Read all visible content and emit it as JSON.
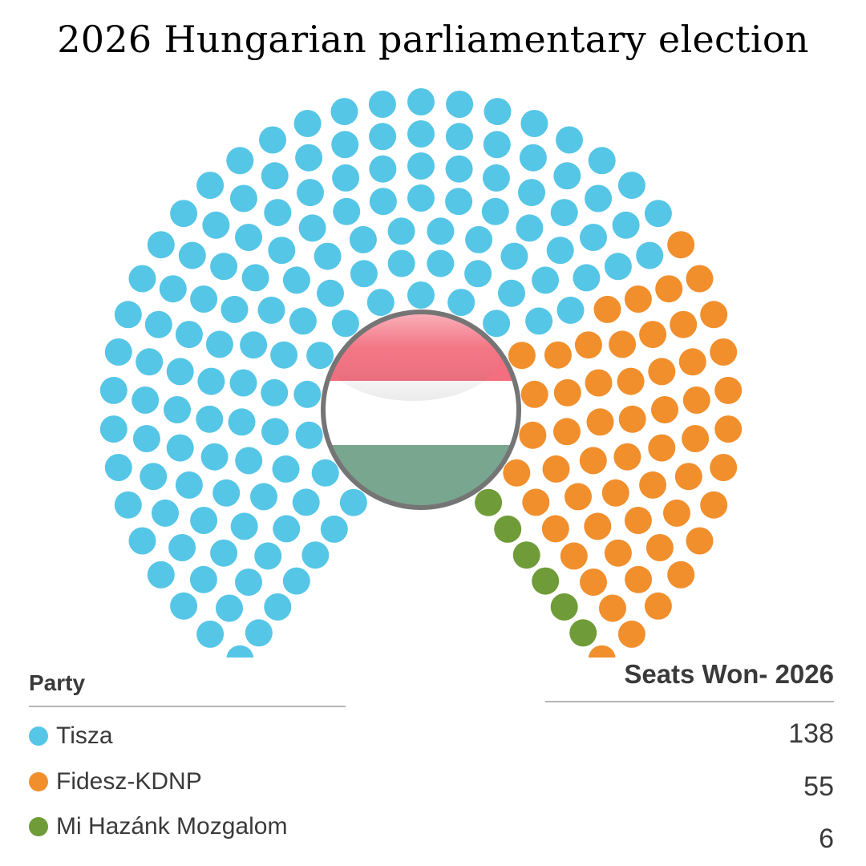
{
  "title": "2026 Hungarian parliamentary election",
  "table": {
    "party_header": "Party",
    "seats_header": "Seats Won- 2026"
  },
  "flag": {
    "top": "#f36f7f",
    "middle": "#ffffff",
    "bottom": "#79a68e",
    "rim": "#757575"
  },
  "chart_data": {
    "type": "parliament",
    "title": "2026 Hungarian parliamentary election",
    "total_seats": 199,
    "legend_placement": "bottom",
    "parties": [
      {
        "name": "Tisza",
        "seats": 138,
        "color": "#56c6e6"
      },
      {
        "name": "Fidesz-KDNP",
        "seats": 55,
        "color": "#f18f2d"
      },
      {
        "name": "Mi Hazánk Mozgalom",
        "seats": 6,
        "color": "#6f9b38"
      }
    ]
  }
}
